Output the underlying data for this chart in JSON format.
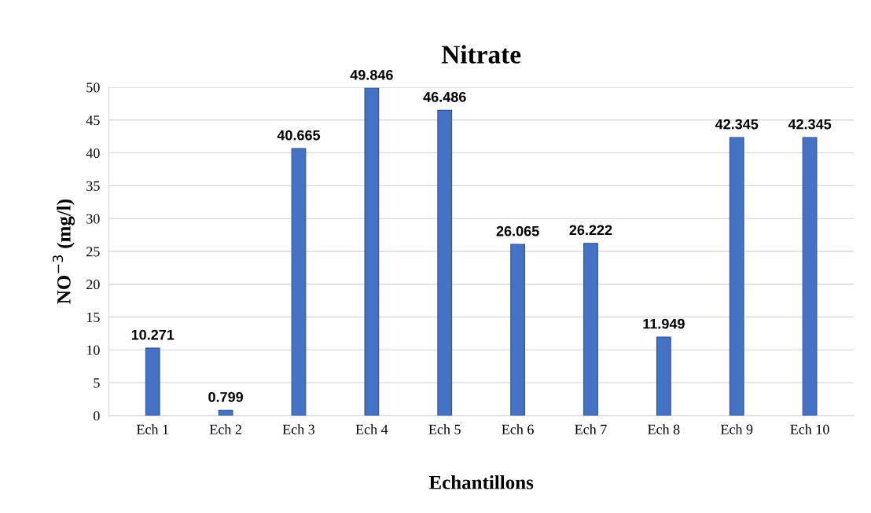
{
  "chart_data": {
    "type": "bar",
    "title": "Nitrate",
    "xlabel": "Echantillons",
    "ylabel": "NO$^{−3}$ (mg/l)",
    "categories": [
      "Ech 1",
      "Ech 2",
      "Ech 3",
      "Ech 4",
      "Ech 5",
      "Ech 6",
      "Ech 7",
      "Ech 8",
      "Ech 9",
      "Ech 10"
    ],
    "values": [
      10.271,
      0.799,
      40.665,
      49.846,
      46.486,
      26.065,
      26.222,
      11.949,
      42.345,
      42.345
    ],
    "color": "#4472c4",
    "ylim": [
      0,
      50
    ],
    "yticks": [
      0,
      5,
      10,
      15,
      20,
      25,
      30,
      35,
      40,
      45,
      50
    ],
    "grid": "y",
    "data_labels": true,
    "legend": false
  }
}
